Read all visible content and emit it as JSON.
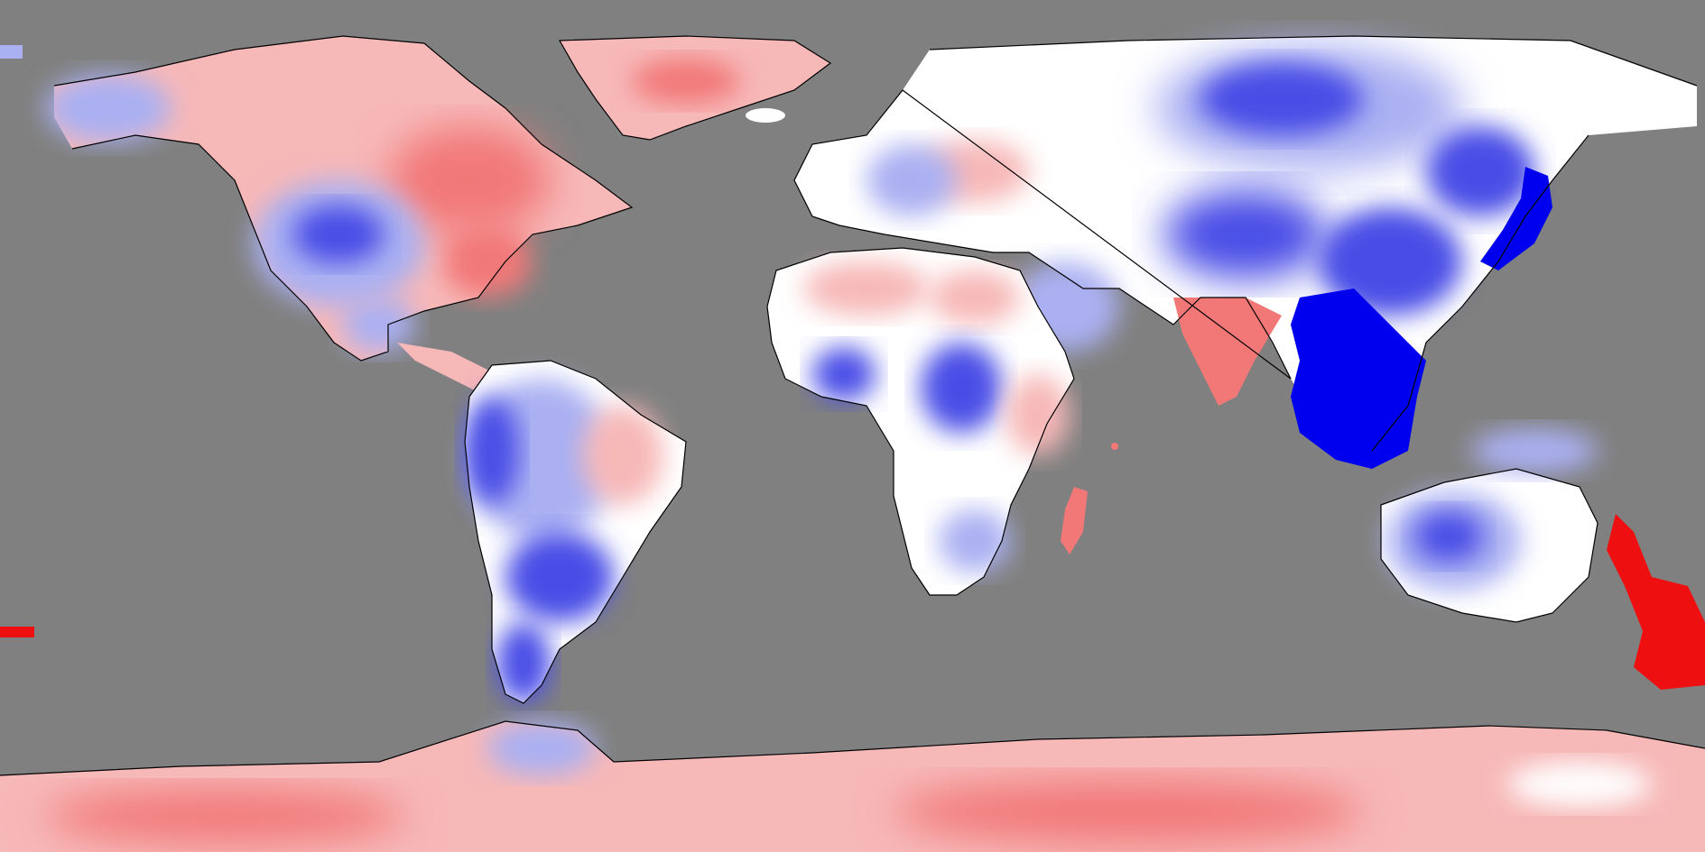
{
  "map": {
    "projection": "equirectangular",
    "field": "temperature-anomaly",
    "colors": {
      "no_data": "#808080",
      "strong_cool": "#0000ee",
      "cool": "#4a4ee6",
      "mild_cool": "#aab0f2",
      "neutral": "#ffffff",
      "mild_warm": "#f7b8b8",
      "warm": "#f27878",
      "strong_warm": "#ee1010",
      "coastline": "#000000"
    }
  }
}
